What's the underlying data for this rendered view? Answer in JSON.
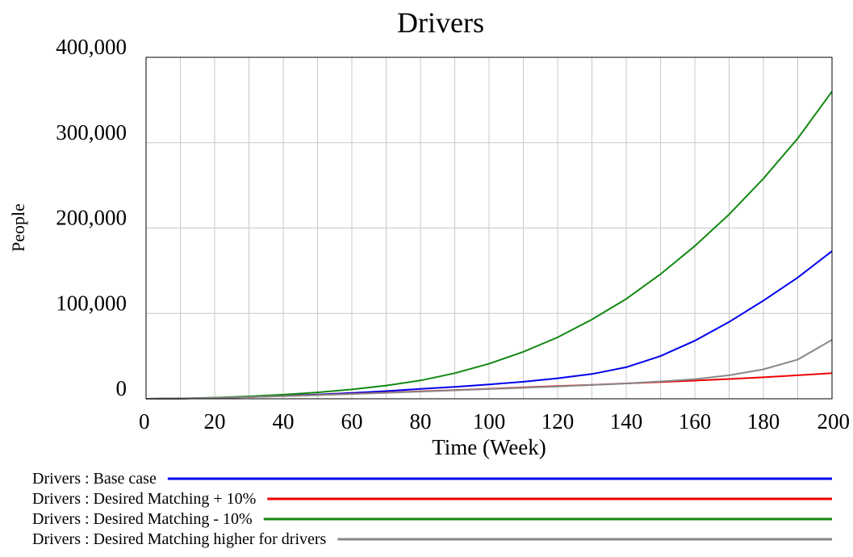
{
  "chart_data": {
    "type": "line",
    "title": "Drivers",
    "xlabel": "Time (Week)",
    "ylabel": "People",
    "xlim": [
      0,
      200
    ],
    "ylim": [
      0,
      400000
    ],
    "x_ticks": [
      0,
      20,
      40,
      60,
      80,
      100,
      120,
      140,
      160,
      180,
      200
    ],
    "x_tick_labels": [
      "0",
      "20",
      "40",
      "60",
      "80",
      "100",
      "120",
      "140",
      "160",
      "180",
      "200"
    ],
    "y_ticks": [
      0,
      100000,
      200000,
      300000,
      400000
    ],
    "y_tick_labels": [
      "0",
      "100,000",
      "200,000",
      "300,000",
      "400,000"
    ],
    "grid": true,
    "legend_placement": "bottom",
    "x": [
      0,
      10,
      20,
      30,
      40,
      50,
      60,
      70,
      80,
      90,
      100,
      110,
      120,
      130,
      140,
      150,
      160,
      170,
      180,
      190,
      200
    ],
    "series": [
      {
        "name": "Drivers : Base case",
        "color": "#0000ee",
        "values": [
          0,
          300,
          1000,
          2200,
          3500,
          5000,
          6800,
          9000,
          11500,
          14000,
          16800,
          20000,
          24000,
          29000,
          37000,
          50000,
          68000,
          90000,
          115000,
          142000,
          173000
        ]
      },
      {
        "name": "Drivers : Desired Matching + 10%",
        "color": "#ee0000",
        "values": [
          0,
          300,
          1000,
          2000,
          3200,
          4400,
          5800,
          7200,
          8700,
          10200,
          11700,
          13300,
          14800,
          16400,
          18000,
          19600,
          21300,
          23200,
          25200,
          27500,
          30000
        ]
      },
      {
        "name": "Drivers : Desired Matching - 10%",
        "color": "#118811",
        "values": [
          0,
          400,
          1300,
          2800,
          4800,
          7500,
          11000,
          15500,
          21500,
          30000,
          41000,
          55000,
          72000,
          93000,
          117000,
          146000,
          179000,
          216000,
          258000,
          305000,
          360000
        ]
      },
      {
        "name": "Drivers : Desired Matching higher for drivers",
        "color": "#888888",
        "values": [
          0,
          300,
          1000,
          2000,
          3100,
          4300,
          5600,
          7000,
          8400,
          9900,
          11400,
          12900,
          14500,
          16200,
          18000,
          20300,
          23000,
          27500,
          34500,
          46000,
          69000
        ]
      }
    ]
  }
}
